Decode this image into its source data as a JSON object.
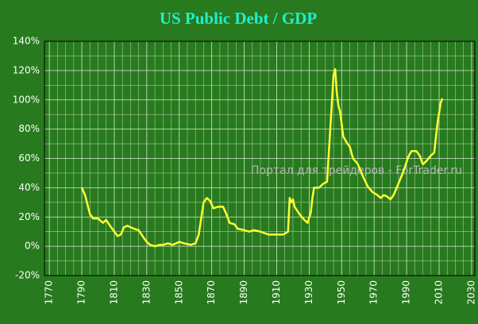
{
  "chart_data": {
    "type": "line",
    "title": "US Public Debt / GDP",
    "watermark": "Портал для трейдеров - ForTrader.ru",
    "x": [
      1790,
      1792,
      1795,
      1797,
      1800,
      1803,
      1805,
      1808,
      1810,
      1812,
      1814,
      1816,
      1818,
      1820,
      1822,
      1825,
      1828,
      1830,
      1832,
      1835,
      1838,
      1840,
      1843,
      1846,
      1850,
      1853,
      1857,
      1860,
      1862,
      1865,
      1867,
      1869,
      1871,
      1874,
      1877,
      1879,
      1881,
      1884,
      1886,
      1890,
      1893,
      1896,
      1900,
      1905,
      1910,
      1914,
      1917,
      1918,
      1919,
      1920,
      1921,
      1924,
      1927,
      1929,
      1931,
      1932,
      1933,
      1936,
      1939,
      1941,
      1943,
      1945,
      1946,
      1947,
      1948,
      1949,
      1951,
      1953,
      1955,
      1957,
      1960,
      1963,
      1966,
      1969,
      1972,
      1974,
      1976,
      1978,
      1980,
      1982,
      1985,
      1988,
      1991,
      1993,
      1996,
      1998,
      2000,
      2002,
      2005,
      2007,
      2009,
      2011,
      2012
    ],
    "series": [
      {
        "color": "#ffff33",
        "values": [
          40,
          35,
          22,
          19,
          19,
          16,
          18,
          13,
          10,
          7,
          8,
          13,
          14,
          13,
          12,
          11,
          6,
          3,
          1,
          0,
          1,
          1,
          2,
          1,
          3,
          2,
          1,
          2,
          8,
          30,
          33,
          31,
          26,
          27,
          27,
          22,
          16,
          15,
          12,
          11,
          10,
          11,
          10,
          8,
          8,
          8,
          10,
          33,
          30,
          32,
          27,
          22,
          18,
          16,
          23,
          33,
          40,
          40,
          43,
          44,
          80,
          117,
          121,
          105,
          96,
          92,
          75,
          71,
          68,
          60,
          56,
          48,
          41,
          37,
          35,
          33,
          35,
          34,
          32,
          35,
          43,
          51,
          61,
          65,
          65,
          62,
          56,
          58,
          62,
          64,
          84,
          98,
          101
        ]
      }
    ],
    "xlim": [
      1767,
      2032
    ],
    "ylim": [
      -20,
      140
    ],
    "xticks": [
      1770,
      1790,
      1810,
      1830,
      1850,
      1870,
      1890,
      1910,
      1930,
      1950,
      1970,
      1990,
      2010,
      2030
    ],
    "yticks": [
      {
        "value": -20,
        "label": "-20%"
      },
      {
        "value": 0,
        "label": "0%"
      },
      {
        "value": 20,
        "label": "20%"
      },
      {
        "value": 40,
        "label": "40%"
      },
      {
        "value": 60,
        "label": "60%"
      },
      {
        "value": 80,
        "label": "80%"
      },
      {
        "value": 100,
        "label": "100%"
      },
      {
        "value": 120,
        "label": "120%"
      },
      {
        "value": 140,
        "label": "140%"
      }
    ],
    "minor_xticks": [
      1775,
      1780,
      1785,
      1795,
      1800,
      1805,
      1815,
      1820,
      1825,
      1835,
      1840,
      1845,
      1855,
      1860,
      1865,
      1875,
      1880,
      1885,
      1895,
      1900,
      1905,
      1915,
      1920,
      1925,
      1935,
      1940,
      1945,
      1955,
      1960,
      1965,
      1975,
      1980,
      1985,
      1995,
      2000,
      2005,
      2015,
      2020,
      2025
    ],
    "minor_yticks": [
      -10,
      10,
      30,
      50,
      70,
      90,
      110,
      130
    ],
    "grid": true
  }
}
